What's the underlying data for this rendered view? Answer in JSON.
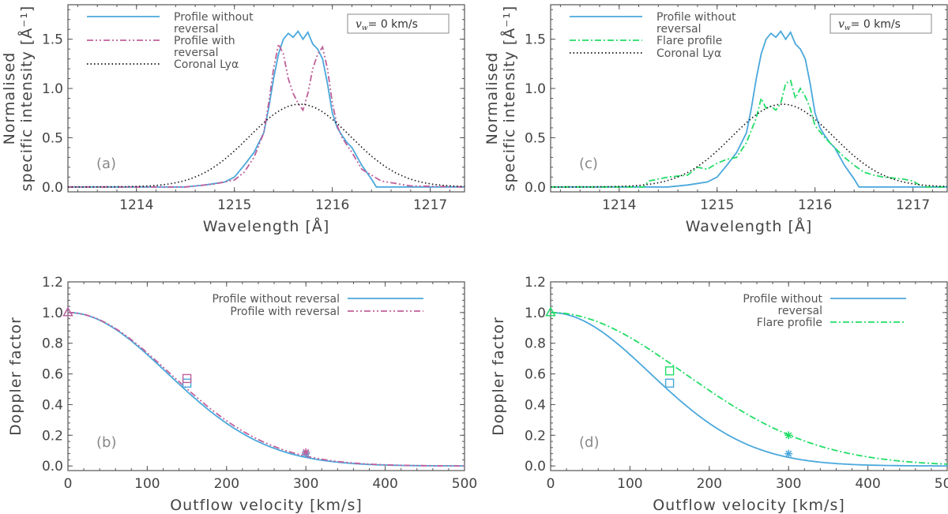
{
  "colors": {
    "blue": "#4aa8dc",
    "pink": "#c0609a",
    "green": "#22dd66",
    "black": "#111111",
    "axis": "#555555"
  },
  "chart_data": [
    {
      "id": "a",
      "type": "line",
      "label": "(a)",
      "xlabel": "Wavelength [Å]",
      "ylabel_line1": "Normalised",
      "ylabel_line2": "specific intensity [Å⁻¹]",
      "xlim": [
        1213.3,
        1217.35
      ],
      "ylim": [
        -0.05,
        1.85
      ],
      "xticks": [
        1214,
        1215,
        1216,
        1217
      ],
      "yticks": [
        0.0,
        0.5,
        1.0,
        1.5
      ],
      "ytick_labels": [
        "0.0",
        "0.5",
        "1.0",
        "1.5"
      ],
      "box_text": "v",
      "box_sub": "w",
      "box_rest": "=   0 km/s",
      "legend": [
        {
          "lines": [
            "Profile without",
            "reversal"
          ],
          "color": "#4aa8dc",
          "style": "solid"
        },
        {
          "lines": [
            "Profile with",
            "reversal"
          ],
          "color": "#c0609a",
          "style": "dashdotdot"
        },
        {
          "lines": [
            "Coronal Lyα"
          ],
          "color": "#111111",
          "style": "dotted"
        }
      ],
      "series": [
        {
          "name": "Profile without reversal",
          "style": "solid",
          "color": "#4aa8dc",
          "x": [
            1213.3,
            1214.5,
            1214.7,
            1214.9,
            1215.0,
            1215.1,
            1215.2,
            1215.3,
            1215.35,
            1215.4,
            1215.45,
            1215.5,
            1215.55,
            1215.6,
            1215.65,
            1215.7,
            1215.75,
            1215.8,
            1215.85,
            1215.9,
            1215.95,
            1216.0,
            1216.05,
            1216.1,
            1216.15,
            1216.2,
            1216.3,
            1216.4,
            1216.45,
            1217.35
          ],
          "y": [
            0.0,
            0.0,
            0.02,
            0.05,
            0.1,
            0.22,
            0.35,
            0.55,
            0.8,
            1.1,
            1.35,
            1.5,
            1.56,
            1.52,
            1.58,
            1.5,
            1.57,
            1.45,
            1.4,
            1.3,
            1.05,
            0.75,
            0.6,
            0.52,
            0.45,
            0.4,
            0.22,
            0.08,
            0.0,
            0.0
          ]
        },
        {
          "name": "Profile with reversal",
          "style": "dashdotdot",
          "color": "#c0609a",
          "x": [
            1213.3,
            1214.5,
            1214.8,
            1215.0,
            1215.1,
            1215.2,
            1215.3,
            1215.35,
            1215.4,
            1215.45,
            1215.5,
            1215.55,
            1215.6,
            1215.65,
            1215.7,
            1215.75,
            1215.8,
            1215.85,
            1215.9,
            1215.95,
            1216.0,
            1216.05,
            1216.1,
            1216.2,
            1216.3,
            1216.5,
            1216.8,
            1217.35
          ],
          "y": [
            0.0,
            0.0,
            0.03,
            0.07,
            0.15,
            0.3,
            0.55,
            0.85,
            1.2,
            1.45,
            1.35,
            1.1,
            0.95,
            0.85,
            0.78,
            0.95,
            1.2,
            1.35,
            1.42,
            1.2,
            0.85,
            0.62,
            0.5,
            0.35,
            0.18,
            0.06,
            0.01,
            0.0
          ]
        },
        {
          "name": "Coronal Lyα",
          "style": "dotted",
          "color": "#111111",
          "gauss": {
            "amp": 0.84,
            "center": 1215.67,
            "sigma": 0.52
          }
        }
      ]
    },
    {
      "id": "c",
      "type": "line",
      "label": "(c)",
      "xlabel": "Wavelength [Å]",
      "ylabel_line1": "Normalised",
      "ylabel_line2": "specific intensity [Å⁻¹]",
      "xlim": [
        1213.3,
        1217.35
      ],
      "ylim": [
        -0.05,
        1.85
      ],
      "xticks": [
        1214,
        1215,
        1216,
        1217
      ],
      "yticks": [
        0.0,
        0.5,
        1.0,
        1.5
      ],
      "ytick_labels": [
        "0.0",
        "0.5",
        "1.0",
        "1.5"
      ],
      "box_text": "v",
      "box_sub": "w",
      "box_rest": "=   0 km/s",
      "legend": [
        {
          "lines": [
            "Profile without",
            "reversal"
          ],
          "color": "#4aa8dc",
          "style": "solid"
        },
        {
          "lines": [
            "Flare profile"
          ],
          "color": "#22dd66",
          "style": "dashdot"
        },
        {
          "lines": [
            "Coronal Lyα"
          ],
          "color": "#111111",
          "style": "dotted"
        }
      ],
      "series": [
        {
          "name": "Profile without reversal",
          "style": "solid",
          "color": "#4aa8dc",
          "x": [
            1213.3,
            1214.5,
            1214.7,
            1214.9,
            1215.0,
            1215.1,
            1215.2,
            1215.3,
            1215.35,
            1215.4,
            1215.45,
            1215.5,
            1215.55,
            1215.6,
            1215.65,
            1215.7,
            1215.75,
            1215.8,
            1215.85,
            1215.9,
            1215.95,
            1216.0,
            1216.05,
            1216.1,
            1216.15,
            1216.2,
            1216.3,
            1216.4,
            1216.45,
            1217.35
          ],
          "y": [
            0.0,
            0.0,
            0.02,
            0.05,
            0.1,
            0.22,
            0.35,
            0.55,
            0.8,
            1.1,
            1.35,
            1.5,
            1.56,
            1.52,
            1.58,
            1.5,
            1.57,
            1.45,
            1.4,
            1.3,
            1.05,
            0.75,
            0.6,
            0.52,
            0.45,
            0.4,
            0.22,
            0.08,
            0.0,
            0.0
          ]
        },
        {
          "name": "Flare profile",
          "style": "dashdot",
          "color": "#22dd66",
          "x": [
            1213.3,
            1214.25,
            1214.3,
            1214.5,
            1214.7,
            1214.8,
            1214.9,
            1215.0,
            1215.1,
            1215.2,
            1215.3,
            1215.4,
            1215.45,
            1215.5,
            1215.55,
            1215.6,
            1215.65,
            1215.7,
            1215.75,
            1215.8,
            1215.85,
            1215.9,
            1215.95,
            1216.0,
            1216.1,
            1216.2,
            1216.3,
            1216.4,
            1216.5,
            1216.6,
            1216.7,
            1216.8,
            1216.9,
            1217.0,
            1217.05,
            1217.1,
            1217.35
          ],
          "y": [
            0.0,
            0.0,
            0.06,
            0.1,
            0.12,
            0.2,
            0.18,
            0.24,
            0.28,
            0.3,
            0.45,
            0.7,
            0.9,
            0.8,
            0.82,
            0.78,
            0.85,
            1.05,
            1.08,
            0.9,
            1.0,
            0.92,
            0.8,
            0.62,
            0.5,
            0.4,
            0.3,
            0.22,
            0.15,
            0.12,
            0.1,
            0.09,
            0.08,
            0.06,
            0.03,
            0.0,
            0.0
          ]
        },
        {
          "name": "Coronal Lyα",
          "style": "dotted",
          "color": "#111111",
          "gauss": {
            "amp": 0.84,
            "center": 1215.67,
            "sigma": 0.52
          }
        }
      ]
    },
    {
      "id": "b",
      "type": "line",
      "label": "(b)",
      "xlabel": "Outflow velocity [km/s]",
      "ylabel": "Doppler factor",
      "xlim": [
        0,
        500
      ],
      "ylim": [
        -0.03,
        1.2
      ],
      "xticks": [
        0,
        100,
        200,
        300,
        400,
        500
      ],
      "yticks": [
        0.0,
        0.2,
        0.4,
        0.6,
        0.8,
        1.0,
        1.2
      ],
      "ytick_labels": [
        "0.0",
        "0.2",
        "0.4",
        "0.6",
        "0.8",
        "1.0",
        "1.2"
      ],
      "legend": [
        {
          "lines": [
            "Profile without reversal"
          ],
          "color": "#4aa8dc",
          "style": "solid"
        },
        {
          "lines": [
            "Profile with reversal"
          ],
          "color": "#c0609a",
          "style": "dashdotdot"
        }
      ],
      "series": [
        {
          "name": "Profile without reversal",
          "style": "solid",
          "color": "#4aa8dc",
          "sigma": 125,
          "markers": [
            {
              "x": 0,
              "y": 1.0,
              "shape": "triangle"
            },
            {
              "x": 150,
              "y": 0.54,
              "shape": "square"
            },
            {
              "x": 300,
              "y": 0.08,
              "shape": "asterisk"
            }
          ]
        },
        {
          "name": "Profile with reversal",
          "style": "dashdotdot",
          "color": "#c0609a",
          "sigma": 128,
          "markers": [
            {
              "x": 0,
              "y": 1.0,
              "shape": "triangle"
            },
            {
              "x": 150,
              "y": 0.57,
              "shape": "square"
            },
            {
              "x": 300,
              "y": 0.09,
              "shape": "asterisk"
            }
          ]
        }
      ]
    },
    {
      "id": "d",
      "type": "line",
      "label": "(d)",
      "xlabel": "Outflow velocity [km/s]",
      "ylabel": "Doppler factor",
      "xlim": [
        0,
        500
      ],
      "ylim": [
        -0.03,
        1.2
      ],
      "xticks": [
        0,
        100,
        200,
        300,
        400,
        500
      ],
      "yticks": [
        0.0,
        0.2,
        0.4,
        0.6,
        0.8,
        1.0,
        1.2
      ],
      "ytick_labels": [
        "0.0",
        "0.2",
        "0.4",
        "0.6",
        "0.8",
        "1.0",
        "1.2"
      ],
      "legend": [
        {
          "lines": [
            "Profile without",
            "reversal"
          ],
          "color": "#4aa8dc",
          "style": "solid"
        },
        {
          "lines": [
            "Flare profile"
          ],
          "color": "#22dd66",
          "style": "dashdot"
        }
      ],
      "series": [
        {
          "name": "Profile without reversal",
          "style": "solid",
          "color": "#4aa8dc",
          "sigma": 125,
          "markers": [
            {
              "x": 0,
              "y": 1.0,
              "shape": "triangle"
            },
            {
              "x": 150,
              "y": 0.54,
              "shape": "square"
            },
            {
              "x": 300,
              "y": 0.08,
              "shape": "asterisk"
            }
          ]
        },
        {
          "name": "Flare profile",
          "style": "dashdot",
          "color": "#22dd66",
          "sigma": 168,
          "markers": [
            {
              "x": 0,
              "y": 1.0,
              "shape": "triangle"
            },
            {
              "x": 150,
              "y": 0.62,
              "shape": "square"
            },
            {
              "x": 300,
              "y": 0.2,
              "shape": "asterisk"
            }
          ]
        }
      ]
    }
  ]
}
